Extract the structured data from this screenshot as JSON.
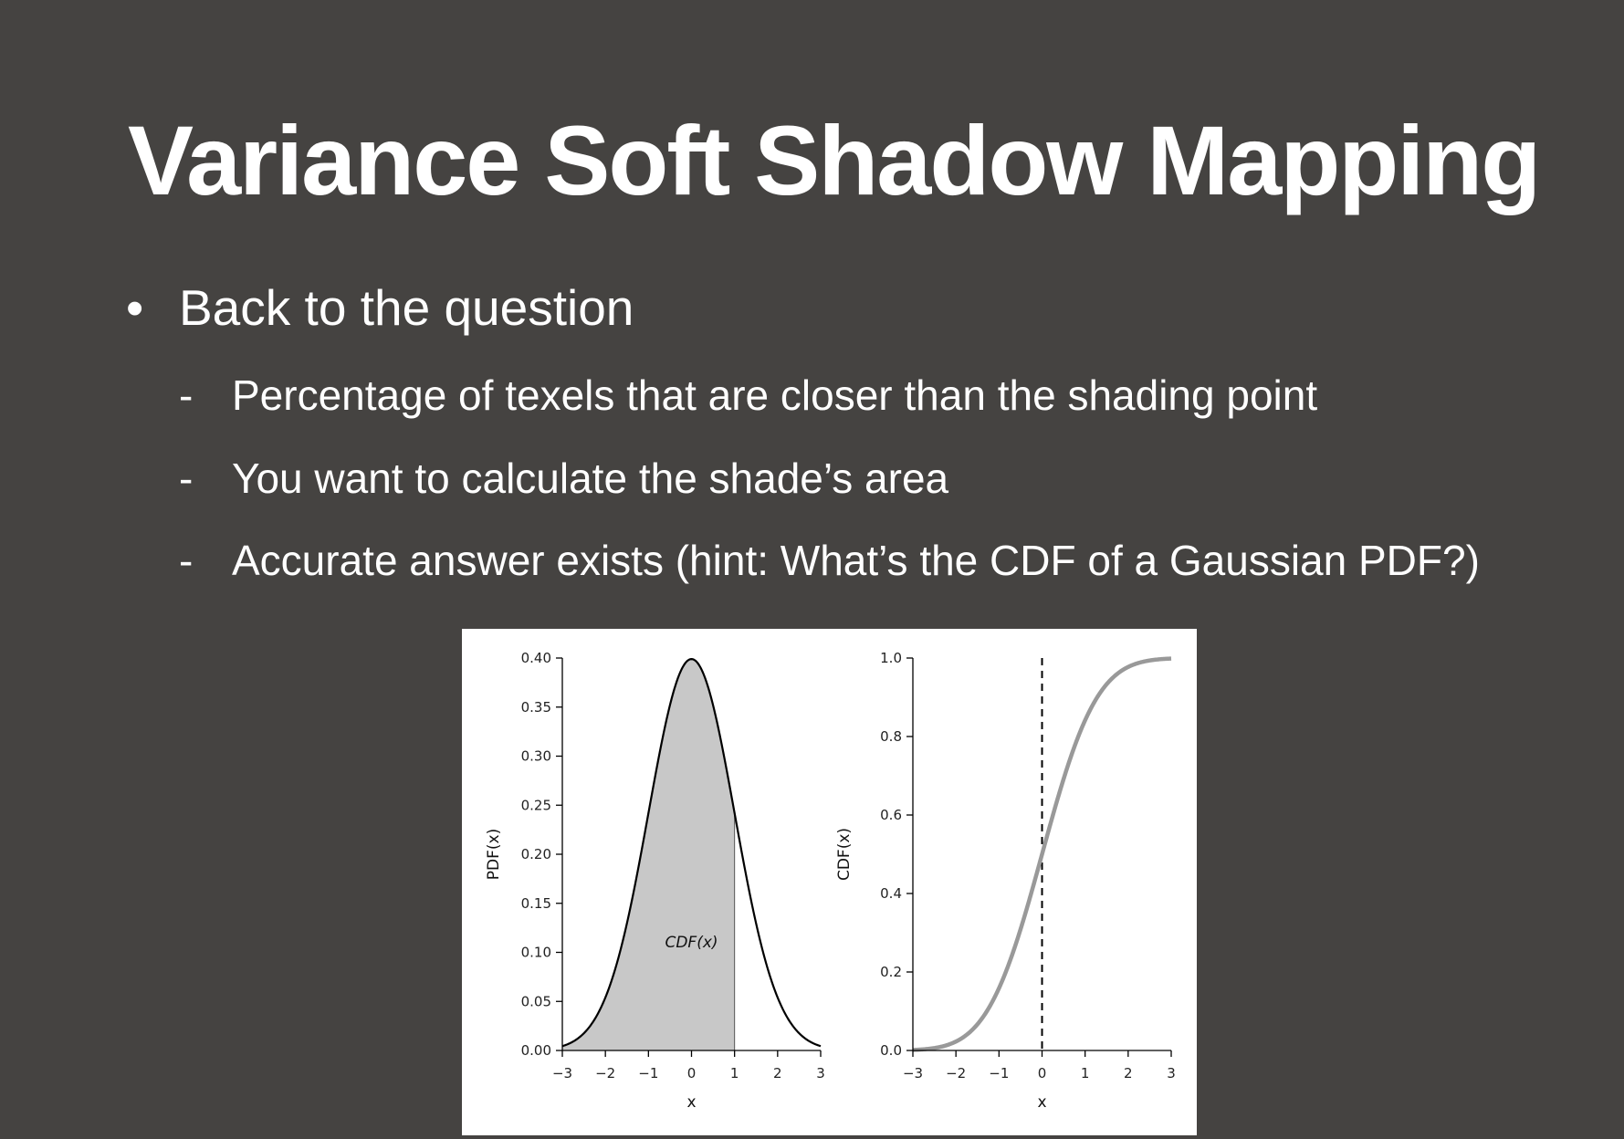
{
  "slide": {
    "title": "Variance Soft Shadow Mapping",
    "bullet": "Back to the question",
    "bullet_marker": "•",
    "sub_marker": "-",
    "sub_bullets": [
      "Percentage of texels that are closer than the shading point",
      "You want to calculate the shade’s area",
      "Accurate answer exists (hint: What’s the CDF of a Gaussian PDF?)"
    ],
    "background_color": "#454341",
    "text_color": "#ffffff"
  },
  "chart_data": [
    {
      "type": "area",
      "title": "",
      "xlabel": "x",
      "ylabel": "PDF(x)",
      "xlim": [
        -3,
        3
      ],
      "ylim": [
        0,
        0.4
      ],
      "x_ticks": [
        "−3",
        "−2",
        "−1",
        "0",
        "1",
        "2",
        "3"
      ],
      "y_ticks": [
        "0.00",
        "0.05",
        "0.10",
        "0.15",
        "0.20",
        "0.25",
        "0.30",
        "0.35",
        "0.40"
      ],
      "series": [
        {
          "function": "standard normal PDF",
          "x": [
            -3,
            -2.5,
            -2,
            -1.5,
            -1,
            -0.5,
            0,
            0.5,
            1,
            1.5,
            2,
            2.5,
            3
          ],
          "y": [
            0.004,
            0.018,
            0.054,
            0.13,
            0.242,
            0.352,
            0.399,
            0.352,
            0.242,
            0.13,
            0.054,
            0.018,
            0.004
          ],
          "color": "#000000"
        }
      ],
      "shaded_region": {
        "from": -3,
        "to": 1,
        "color": "#c8c8c8"
      },
      "annotations": [
        {
          "text": "CDF(x)",
          "x": 0,
          "y": 0.105
        }
      ],
      "grid": false
    },
    {
      "type": "line",
      "title": "",
      "xlabel": "x",
      "ylabel": "CDF(x)",
      "xlim": [
        -3,
        3
      ],
      "ylim": [
        0,
        1
      ],
      "x_ticks": [
        "−3",
        "−2",
        "−1",
        "0",
        "1",
        "2",
        "3"
      ],
      "y_ticks": [
        "0.0",
        "0.2",
        "0.4",
        "0.6",
        "0.8",
        "1.0"
      ],
      "series": [
        {
          "function": "standard normal CDF",
          "x": [
            -3,
            -2.5,
            -2,
            -1.5,
            -1,
            -0.5,
            0,
            0.5,
            1,
            1.5,
            2,
            2.5,
            3
          ],
          "y": [
            0.001,
            0.006,
            0.023,
            0.067,
            0.159,
            0.309,
            0.5,
            0.691,
            0.841,
            0.933,
            0.977,
            0.994,
            0.999
          ],
          "color": "#999999"
        }
      ],
      "reference_line": {
        "x": 0,
        "style": "dashed",
        "color": "#000000"
      },
      "grid": false
    }
  ]
}
